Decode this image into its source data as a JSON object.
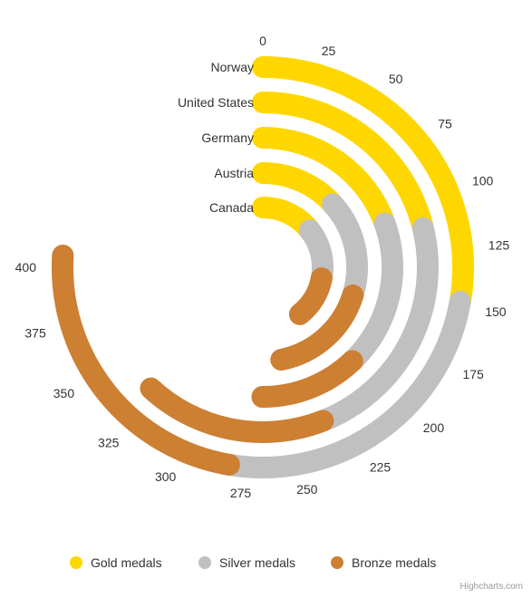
{
  "chart_data": {
    "type": "radial-stacked-bar",
    "categories": [
      "Norway",
      "United States",
      "Germany",
      "Austria",
      "Canada"
    ],
    "series": [
      {
        "name": "Gold medals",
        "color": "#FFD700",
        "values": [
          148,
          113,
          104,
          71,
          77
        ]
      },
      {
        "name": "Silver medals",
        "color": "#C0C0C0",
        "values": [
          133,
          122,
          98,
          88,
          72
        ]
      },
      {
        "name": "Bronze medals",
        "color": "#CD7F32",
        "values": [
          124,
          95,
          65,
          91,
          61
        ]
      }
    ],
    "value_axis": {
      "min": 0,
      "max": 400,
      "tick_interval": 25,
      "tick_labels": [
        "0",
        "25",
        "50",
        "75",
        "100",
        "125",
        "150",
        "175",
        "200",
        "225",
        "250",
        "275",
        "300",
        "325",
        "350",
        "375",
        "400"
      ]
    },
    "legend_placement": "bottom-center",
    "grid": false
  },
  "legend": {
    "items": [
      {
        "label": "Gold medals",
        "color": "#FFD700"
      },
      {
        "label": "Silver medals",
        "color": "#C0C0C0"
      },
      {
        "label": "Bronze medals",
        "color": "#CD7F32"
      }
    ]
  },
  "credits": "Highcharts.com"
}
